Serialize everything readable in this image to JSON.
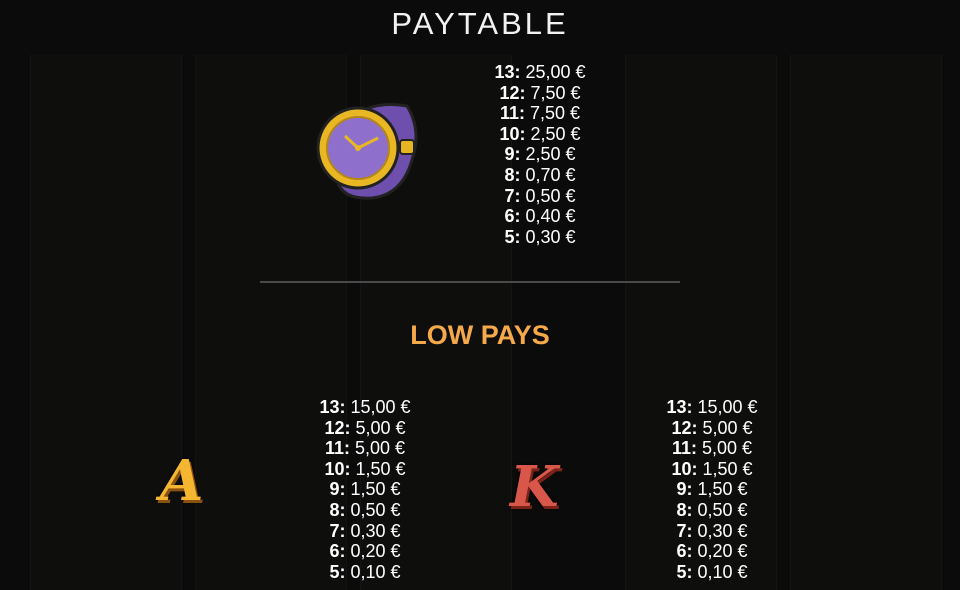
{
  "title": "PAYTABLE",
  "high": {
    "symbol": "watch-icon",
    "pays": [
      [
        "13:",
        "25,00 €"
      ],
      [
        "12:",
        "7,50 €"
      ],
      [
        "11:",
        "7,50 €"
      ],
      [
        "10:",
        "2,50 €"
      ],
      [
        "9:",
        "2,50 €"
      ],
      [
        "8:",
        "0,70 €"
      ],
      [
        "7:",
        "0,50 €"
      ],
      [
        "6:",
        "0,40 €"
      ],
      [
        "5:",
        "0,30 €"
      ]
    ]
  },
  "low_title": "LOW PAYS",
  "low": [
    {
      "symbol": "A",
      "color": "#f4b530",
      "pays": [
        [
          "13:",
          "15,00 €"
        ],
        [
          "12:",
          "5,00 €"
        ],
        [
          "11:",
          "5,00 €"
        ],
        [
          "10:",
          "1,50 €"
        ],
        [
          "9:",
          "1,50 €"
        ],
        [
          "8:",
          "0,50 €"
        ],
        [
          "7:",
          "0,30 €"
        ],
        [
          "6:",
          "0,20 €"
        ],
        [
          "5:",
          "0,10 €"
        ]
      ]
    },
    {
      "symbol": "K",
      "color": "#d9574a",
      "pays": [
        [
          "13:",
          "15,00 €"
        ],
        [
          "12:",
          "5,00 €"
        ],
        [
          "11:",
          "5,00 €"
        ],
        [
          "10:",
          "1,50 €"
        ],
        [
          "9:",
          "1,50 €"
        ],
        [
          "8:",
          "0,50 €"
        ],
        [
          "7:",
          "0,30 €"
        ],
        [
          "6:",
          "0,20 €"
        ],
        [
          "5:",
          "0,10 €"
        ]
      ]
    }
  ]
}
